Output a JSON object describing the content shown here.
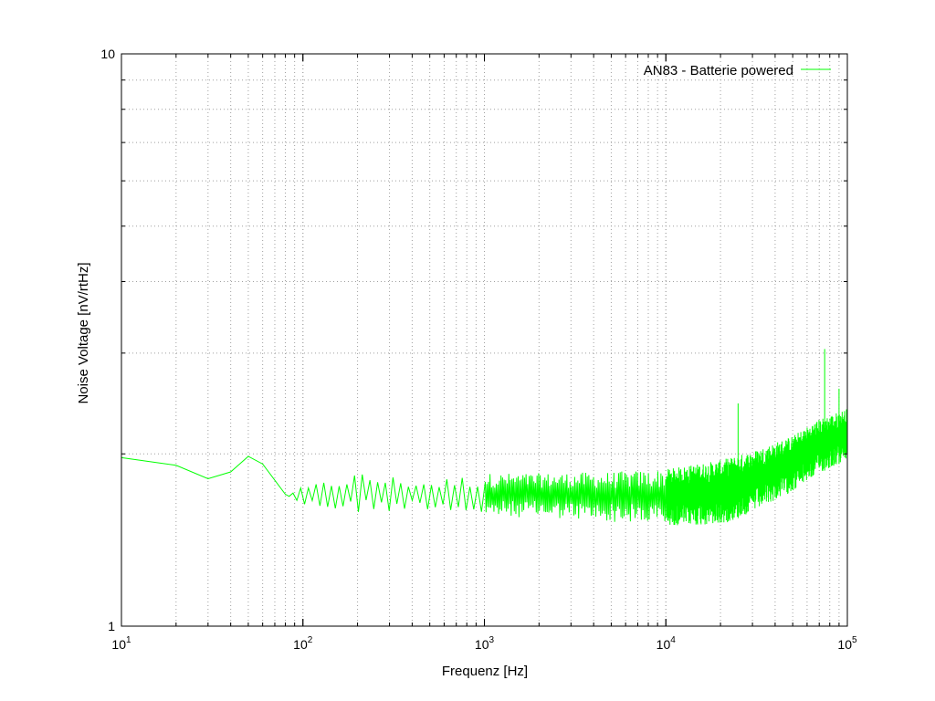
{
  "chart_data": {
    "type": "line",
    "title": "",
    "xlabel": "Frequenz [Hz]",
    "ylabel": "Noise Voltage [nV/rtHz]",
    "x_scale": "log",
    "y_scale": "log",
    "xlim": [
      10,
      100000
    ],
    "ylim": [
      1,
      10
    ],
    "x_ticks": [
      {
        "base": "10",
        "exp": "1"
      },
      {
        "base": "10",
        "exp": "2"
      },
      {
        "base": "10",
        "exp": "3"
      },
      {
        "base": "10",
        "exp": "4"
      },
      {
        "base": "10",
        "exp": "5"
      }
    ],
    "y_ticks": [
      {
        "value": 1,
        "label": "1"
      },
      {
        "value": 10,
        "label": "10"
      }
    ],
    "grid": true,
    "legend_position": "top-right",
    "series": [
      {
        "name": "AN83 - Batterie powered",
        "color": "#00ff00",
        "envelope": [
          {
            "f": 10,
            "lo": 1.97,
            "hi": 1.97
          },
          {
            "f": 20,
            "lo": 1.91,
            "hi": 1.91
          },
          {
            "f": 30,
            "lo": 1.81,
            "hi": 1.81
          },
          {
            "f": 40,
            "lo": 1.86,
            "hi": 1.86
          },
          {
            "f": 50,
            "lo": 1.98,
            "hi": 1.98
          },
          {
            "f": 60,
            "lo": 1.92,
            "hi": 1.92
          },
          {
            "f": 80,
            "lo": 1.7,
            "hi": 1.7
          },
          {
            "f": 100,
            "lo": 1.62,
            "hi": 1.75
          },
          {
            "f": 200,
            "lo": 1.57,
            "hi": 1.86
          },
          {
            "f": 500,
            "lo": 1.6,
            "hi": 1.8
          },
          {
            "f": 1000,
            "lo": 1.55,
            "hi": 1.85
          },
          {
            "f": 2000,
            "lo": 1.55,
            "hi": 1.85
          },
          {
            "f": 5000,
            "lo": 1.52,
            "hi": 1.86
          },
          {
            "f": 10000,
            "lo": 1.5,
            "hi": 1.88
          },
          {
            "f": 20000,
            "lo": 1.5,
            "hi": 1.95
          },
          {
            "f": 30000,
            "lo": 1.58,
            "hi": 2.02
          },
          {
            "f": 50000,
            "lo": 1.72,
            "hi": 2.15
          },
          {
            "f": 70000,
            "lo": 1.85,
            "hi": 2.3
          },
          {
            "f": 100000,
            "lo": 1.95,
            "hi": 2.4
          }
        ],
        "spikes": [
          {
            "f": 25000,
            "y": 2.45
          },
          {
            "f": 75000,
            "y": 3.05
          },
          {
            "f": 90000,
            "y": 2.6
          }
        ]
      }
    ]
  }
}
